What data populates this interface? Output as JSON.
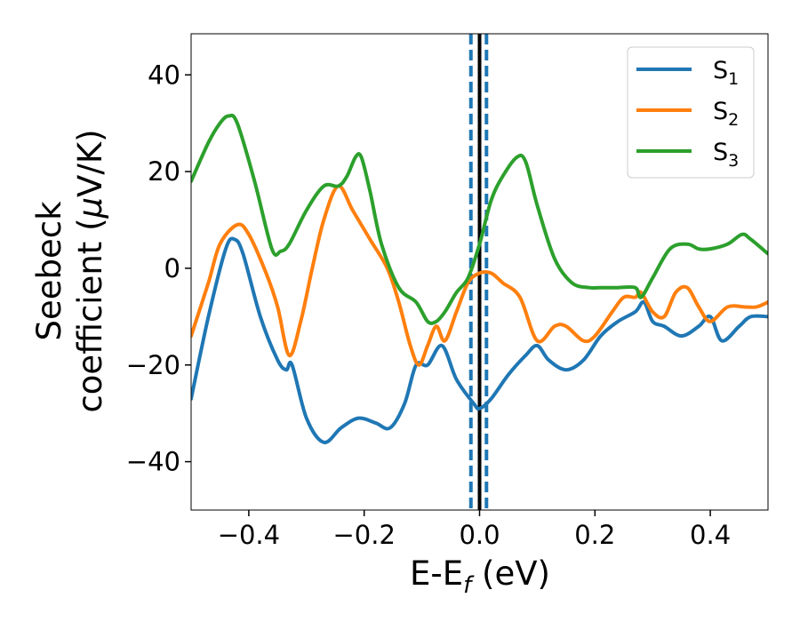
{
  "chart_data": {
    "type": "line",
    "xlabel": {
      "main": "E-E",
      "sub": "f",
      "tail": " (eV)"
    },
    "ylabel": {
      "line1": "Seebeck",
      "line2_pre": "coefficient  (",
      "line2_mu": "μ",
      "line2_post": "V/K)"
    },
    "xlim": [
      -0.5,
      0.5
    ],
    "ylim": [
      -50,
      48.5
    ],
    "xticks": [
      -0.4,
      -0.2,
      0.0,
      0.2,
      0.4
    ],
    "xtick_labels": [
      "−0.4",
      "−0.2",
      "0.0",
      "0.2",
      "0.4"
    ],
    "yticks": [
      -40,
      -20,
      0,
      20,
      40
    ],
    "ytick_labels": [
      "−40",
      "−20",
      "0",
      "20",
      "40"
    ],
    "legend_position": "top-right",
    "vlines": [
      {
        "x": 0.0,
        "color": "#000000",
        "style": "solid"
      },
      {
        "x": -0.015,
        "color": "#1f77b4",
        "style": "dashed"
      },
      {
        "x": 0.012,
        "color": "#1f77b4",
        "style": "dashed"
      }
    ],
    "series": [
      {
        "name": "S",
        "sub": "1",
        "color": "#1f77b4",
        "x": [
          -0.5,
          -0.47,
          -0.44,
          -0.425,
          -0.41,
          -0.38,
          -0.35,
          -0.335,
          -0.325,
          -0.3,
          -0.27,
          -0.24,
          -0.21,
          -0.18,
          -0.155,
          -0.13,
          -0.11,
          -0.09,
          -0.065,
          -0.04,
          -0.01,
          0.0,
          0.02,
          0.05,
          0.08,
          0.1,
          0.12,
          0.15,
          0.18,
          0.21,
          0.24,
          0.27,
          0.285,
          0.3,
          0.32,
          0.35,
          0.38,
          0.4,
          0.42,
          0.45,
          0.47,
          0.5
        ],
        "y": [
          -27,
          -10,
          4,
          6,
          3,
          -10,
          -19,
          -21,
          -20,
          -31,
          -36,
          -33,
          -31,
          -32,
          -33,
          -28,
          -20,
          -20,
          -16,
          -23,
          -28,
          -29,
          -27,
          -22,
          -18,
          -16,
          -19,
          -21,
          -19,
          -14,
          -11,
          -9,
          -7,
          -11,
          -12,
          -14,
          -12,
          -10,
          -15,
          -12,
          -10,
          -10
        ]
      },
      {
        "name": "S",
        "sub": "2",
        "color": "#ff7f0e",
        "x": [
          -0.5,
          -0.47,
          -0.45,
          -0.42,
          -0.4,
          -0.37,
          -0.35,
          -0.33,
          -0.31,
          -0.29,
          -0.27,
          -0.245,
          -0.22,
          -0.19,
          -0.16,
          -0.14,
          -0.12,
          -0.105,
          -0.09,
          -0.075,
          -0.06,
          -0.04,
          -0.02,
          0.0,
          0.02,
          0.04,
          0.07,
          0.1,
          0.13,
          0.15,
          0.18,
          0.2,
          0.23,
          0.25,
          0.27,
          0.28,
          0.3,
          0.32,
          0.34,
          0.36,
          0.38,
          0.4,
          0.43,
          0.46,
          0.48,
          0.5
        ],
        "y": [
          -14,
          -3,
          5,
          9,
          7,
          -1,
          -8,
          -18,
          -11,
          0,
          10,
          17,
          12,
          6,
          0,
          -7,
          -16,
          -20,
          -16,
          -12,
          -15,
          -9,
          -3,
          -1,
          -1,
          -3,
          -6,
          -15,
          -12,
          -12,
          -15,
          -14,
          -9,
          -6,
          -6,
          -5,
          -9,
          -10,
          -5,
          -4,
          -8,
          -11,
          -8,
          -8,
          -8,
          -7
        ]
      },
      {
        "name": "S",
        "sub": "3",
        "color": "#2ca02c",
        "x": [
          -0.5,
          -0.47,
          -0.45,
          -0.435,
          -0.42,
          -0.39,
          -0.36,
          -0.345,
          -0.33,
          -0.3,
          -0.27,
          -0.245,
          -0.23,
          -0.215,
          -0.205,
          -0.19,
          -0.17,
          -0.14,
          -0.11,
          -0.09,
          -0.075,
          -0.06,
          -0.04,
          -0.02,
          0.0,
          0.02,
          0.04,
          0.065,
          0.08,
          0.1,
          0.13,
          0.16,
          0.19,
          0.21,
          0.24,
          0.27,
          0.28,
          0.3,
          0.33,
          0.36,
          0.38,
          0.4,
          0.43,
          0.455,
          0.47,
          0.5
        ],
        "y": [
          18,
          26,
          30,
          31.5,
          30,
          18,
          4,
          3.5,
          5,
          12,
          17,
          17,
          19,
          23,
          23,
          16,
          5,
          -4,
          -7,
          -11,
          -11,
          -9,
          -5,
          -2,
          5,
          14,
          19,
          23,
          22,
          13,
          2,
          -3,
          -4,
          -4,
          -4,
          -4,
          -6,
          -2,
          4,
          5,
          4,
          4,
          5,
          7,
          6,
          3
        ]
      }
    ]
  }
}
